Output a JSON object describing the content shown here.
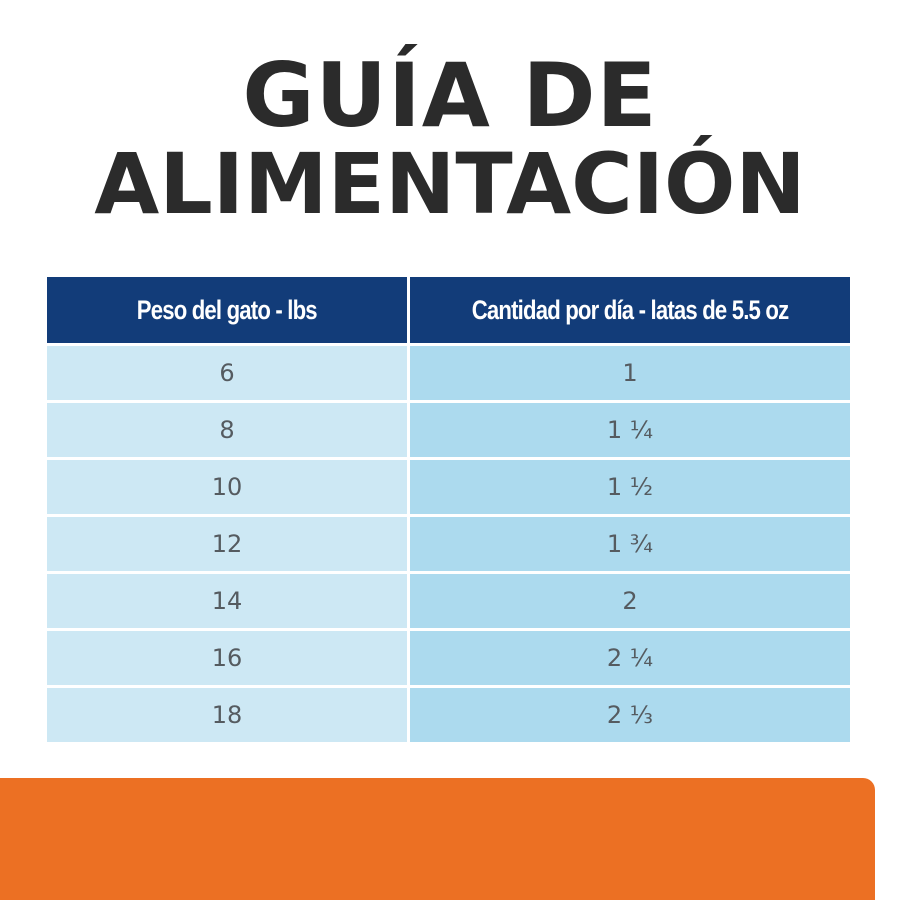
{
  "title": {
    "line1": "GUÍA DE",
    "line2": "ALIMENTACIÓN"
  },
  "table": {
    "headers": [
      "Peso del gato - lbs",
      "Cantidad por día - latas de 5.5 oz"
    ],
    "rows": [
      [
        "6",
        "1"
      ],
      [
        "8",
        "1 ¼"
      ],
      [
        "10",
        "1 ½"
      ],
      [
        "12",
        "1 ¾"
      ],
      [
        "14",
        "2"
      ],
      [
        "16",
        "2 ¼"
      ],
      [
        "18",
        "2 ⅓"
      ]
    ]
  },
  "colors": {
    "header_bg": "#123c79",
    "weight_col_bg": "#cde8f4",
    "amount_col_bg": "#acdaee",
    "title_text": "#2b2b2b",
    "orange_band": "#ec7023"
  }
}
